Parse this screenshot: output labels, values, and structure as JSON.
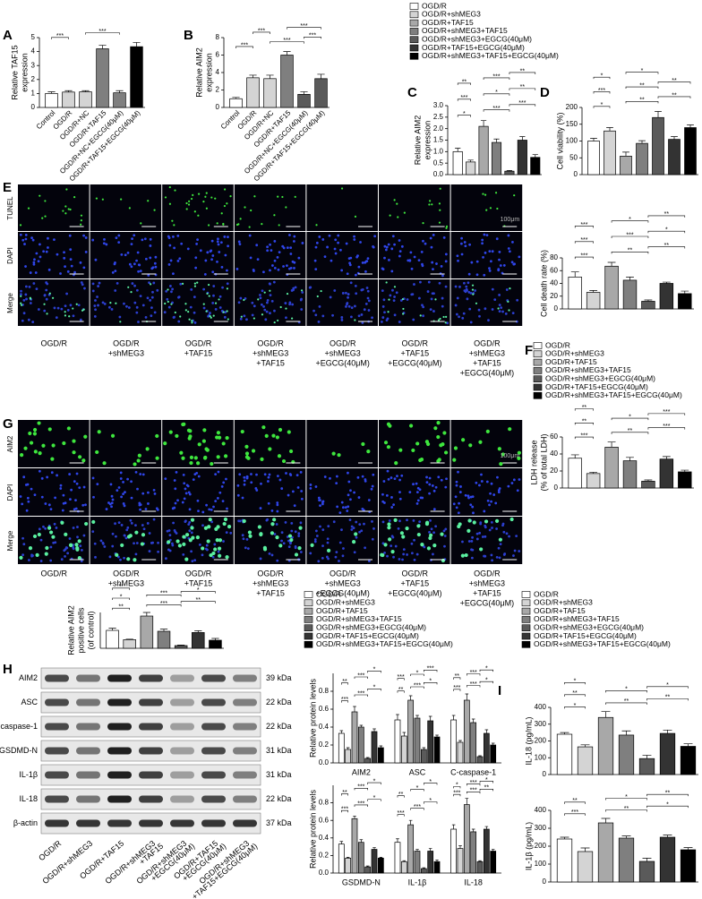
{
  "panels": [
    "A",
    "B",
    "C",
    "D",
    "E",
    "F",
    "G",
    "H",
    "I"
  ],
  "groups": [
    {
      "name": "OGD/R",
      "color": "#ffffff"
    },
    {
      "name": "OGD/R+shMEG3",
      "color": "#d4d4d4"
    },
    {
      "name": "OGD/R+TAF15",
      "color": "#a8a8a8"
    },
    {
      "name": "OGD/R+shMEG3+TAF15",
      "color": "#7f7f7f"
    },
    {
      "name": "OGD/R+shMEG3+EGCG(40μM)",
      "color": "#5a5a5a"
    },
    {
      "name": "OGD/R+TAF15+EGCG(40μM)",
      "color": "#333333"
    },
    {
      "name": "OGD/R+shMEG3+TAF15+EGCG(40μM)",
      "color": "#000000"
    }
  ],
  "microscopy": [
    {
      "rows": [
        "TUNEL",
        "DAPI",
        "Merge"
      ],
      "scale_bar": "100μm",
      "columns": [
        [
          "OGD/R"
        ],
        [
          "OGD/R",
          "+shMEG3"
        ],
        [
          "OGD/R",
          "+TAF15"
        ],
        [
          "OGD/R",
          "+shMEG3",
          "+TAF15"
        ],
        [
          "OGD/R",
          "+shMEG3",
          "+EGCG(40μM)"
        ],
        [
          "OGD/R",
          "+TAF15",
          "+EGCG(40μM)"
        ],
        [
          "OGD/R",
          "+shMEG3",
          "+TAF15",
          "+EGCG(40μM)"
        ]
      ]
    },
    {
      "rows": [
        "AIM2",
        "DAPI",
        "Merge"
      ],
      "scale_bar": "100μm",
      "columns": [
        [
          "OGD/R"
        ],
        [
          "OGD/R",
          "+shMEG3"
        ],
        [
          "OGD/R",
          "+TAF15"
        ],
        [
          "OGD/R",
          "+shMEG3",
          "+TAF15"
        ],
        [
          "OGD/R",
          "+shMEG3",
          "+EGCG(40μM)"
        ],
        [
          "OGD/R",
          "+TAF15",
          "+EGCG(40μM)"
        ],
        [
          "OGD/R",
          "+shMEG3",
          "+TAF15",
          "+EGCG(40μM)"
        ]
      ]
    }
  ],
  "western_blot": {
    "rows": [
      {
        "protein": "AIM2",
        "size": "39 kDa"
      },
      {
        "protein": "ASC",
        "size": "22 kDa"
      },
      {
        "protein": "C-caspase-1",
        "size": "22 kDa"
      },
      {
        "protein": "GSDMD-N",
        "size": "31 kDa"
      },
      {
        "protein": "IL-1β",
        "size": "31 kDa"
      },
      {
        "protein": "IL-18",
        "size": "22 kDa"
      },
      {
        "protein": "β-actin",
        "size": "37 kDa"
      }
    ],
    "lanes": [
      [
        "OGD/R"
      ],
      [
        "OGD/R+shMEG3"
      ],
      [
        "OGD/R+TAF15"
      ],
      [
        "OGD/R+shMEG3",
        "+TAF15"
      ],
      [
        "OGD/R+shMEG3",
        "+EGCG(40μM)"
      ],
      [
        "OGD/R+TAF15",
        "+EGCG(40μM)"
      ],
      [
        "OGD/R+shMEG3",
        "+TAF15+EGCG(40μM)"
      ]
    ]
  },
  "chart_data": [
    {
      "type": "bar",
      "ylabel": [
        "Relative TAF15",
        "expression"
      ],
      "categories": [
        "Control",
        "OGD/R",
        "OGD/R+NC",
        "OGD/R+TAF15",
        "OGD/R+NC+EGCG(40μM)",
        "OGD/R+TAF15+EGCG(40μM)"
      ],
      "values": [
        1,
        1.1,
        1.12,
        4.2,
        1.05,
        4.35
      ],
      "errors": [
        0.12,
        0.1,
        0.08,
        0.25,
        0.15,
        0.3
      ],
      "colors": [
        "#ffffff",
        "#d4d4d4",
        "#d4d4d4",
        "#7f7f7f",
        "#7f7f7f",
        "#000000"
      ],
      "ylim": [
        0,
        5
      ],
      "yticks": [
        0,
        1,
        2,
        3,
        4,
        5
      ],
      "significance": [
        "***",
        "***"
      ]
    },
    {
      "type": "bar",
      "ylabel": [
        "Relative AIM2",
        "expression"
      ],
      "categories": [
        "Control",
        "OGD/R",
        "OGD/R+NC",
        "OGD/R+TAF15",
        "OGD/R+NC+EGCG(40μM)",
        "OGD/R+TAF15+EGCG(40μM)"
      ],
      "values": [
        1,
        3.4,
        3.3,
        6,
        1.5,
        3.3
      ],
      "errors": [
        0.15,
        0.3,
        0.4,
        0.4,
        0.3,
        0.5
      ],
      "colors": [
        "#ffffff",
        "#d4d4d4",
        "#d4d4d4",
        "#7f7f7f",
        "#5a5a5a",
        "#5a5a5a"
      ],
      "ylim": [
        0,
        8
      ],
      "yticks": [
        0,
        2,
        4,
        6,
        8
      ],
      "significance": [
        "***",
        "***",
        "***",
        "***",
        "***"
      ]
    },
    {
      "type": "bar",
      "ylabel": [
        "Relative AIM2",
        "expression"
      ],
      "values": [
        1,
        0.55,
        2.1,
        1.4,
        0.15,
        1.5,
        0.75
      ],
      "errors": [
        0.15,
        0.08,
        0.25,
        0.15,
        0.03,
        0.15,
        0.12
      ],
      "ylim": [
        0,
        3
      ],
      "yticks": [
        {
          "value": 0,
          "label": "0.0"
        },
        0.5,
        {
          "value": 1,
          "label": "1.0"
        },
        1.5,
        {
          "value": 2,
          "label": "2.0"
        },
        2.5,
        {
          "value": 3,
          "label": "3.0"
        }
      ],
      "significance": [
        "*",
        "***",
        "***",
        "***",
        "*",
        "**",
        "**",
        "***",
        "**"
      ]
    },
    {
      "type": "bar",
      "ylabel": [
        "Cell viability (%)"
      ],
      "values": [
        100,
        130,
        55,
        93,
        170,
        105,
        140
      ],
      "errors": [
        8,
        10,
        12,
        8,
        18,
        8,
        8
      ],
      "ylim": [
        0,
        200
      ],
      "yticks": [
        0,
        50,
        100,
        150,
        200
      ],
      "significance": [
        "*",
        "**",
        "**",
        "***",
        "**",
        "**",
        "*",
        "*"
      ]
    },
    {
      "type": "bar",
      "ylabel": [
        "Cell death rate (%)"
      ],
      "values": [
        50,
        26,
        67,
        45,
        12,
        40,
        24
      ],
      "errors": [
        8,
        3,
        6,
        5,
        2,
        2,
        4
      ],
      "ylim": [
        0,
        80
      ],
      "yticks": [
        0,
        20,
        40,
        60,
        80
      ],
      "significance": [
        "***",
        "**",
        "**",
        "***",
        "***",
        "*",
        "***",
        "*",
        "**"
      ]
    },
    {
      "type": "bar",
      "ylabel": [
        "LDH release",
        "(% of total LDH)"
      ],
      "values": [
        35,
        17,
        48,
        32,
        8,
        34,
        19
      ],
      "errors": [
        4,
        1.5,
        6,
        4,
        1.5,
        3,
        2
      ],
      "ylim": [
        0,
        60
      ],
      "yticks": [
        0,
        20,
        40,
        60
      ],
      "significance": [
        "***",
        "**",
        "***",
        "**",
        "*",
        "***",
        "**"
      ]
    },
    {
      "type": "bar",
      "ylabel": [
        "Relative AIM2",
        "positive cells",
        "(of control)"
      ],
      "values": [
        1,
        0.48,
        1.8,
        0.95,
        0.15,
        0.88,
        0.45
      ],
      "errors": [
        0.12,
        0.03,
        0.2,
        0.12,
        0.03,
        0.1,
        0.1
      ],
      "ylim": [
        0,
        2
      ],
      "significance": [
        "**",
        "***",
        "**",
        "*",
        "***",
        "*",
        "**"
      ]
    },
    {
      "type": "grouped_bar",
      "ylabel": [
        "Relative protein levels"
      ],
      "categories": [
        "AIM2",
        "ASC",
        "C-caspase-1"
      ],
      "series": [
        {
          "values": [
            0.33,
            0.48,
            0.48
          ],
          "errors": [
            0.03,
            0.06,
            0.05
          ]
        },
        {
          "values": [
            0.15,
            0.3,
            0.23
          ],
          "errors": [
            0.02,
            0.04,
            0.02
          ]
        },
        {
          "values": [
            0.57,
            0.7,
            0.7
          ],
          "errors": [
            0.06,
            0.05,
            0.07
          ]
        },
        {
          "values": [
            0.4,
            0.5,
            0.45
          ],
          "errors": [
            0.02,
            0.03,
            0.04
          ]
        },
        {
          "values": [
            0.05,
            0.15,
            0.07
          ],
          "errors": [
            0.01,
            0.02,
            0.01
          ]
        },
        {
          "values": [
            0.35,
            0.47,
            0.33
          ],
          "errors": [
            0.03,
            0.05,
            0.04
          ]
        },
        {
          "values": [
            0.17,
            0.29,
            0.2
          ],
          "errors": [
            0.02,
            0.02,
            0.02
          ]
        }
      ],
      "ylim": [
        0,
        1
      ],
      "yticks": [
        {
          "value": 0,
          "label": "0.0"
        },
        0.2,
        0.4,
        0.6,
        0.8
      ],
      "significance": [
        [
          "***",
          "***",
          "*",
          "**",
          "***",
          "*"
        ],
        [
          "**",
          "***",
          "*",
          "***",
          "*",
          "***"
        ],
        [
          "***",
          "***",
          "*",
          "**",
          "***",
          "*"
        ]
      ]
    },
    {
      "type": "grouped_bar",
      "ylabel": [
        "Relative protein levels"
      ],
      "categories": [
        "GSDMD-N",
        "IL-1β",
        "IL-18"
      ],
      "series": [
        {
          "values": [
            0.33,
            0.35,
            0.5
          ],
          "errors": [
            0.03,
            0.04,
            0.05
          ]
        },
        {
          "values": [
            0.17,
            0.13,
            0.28
          ],
          "errors": [
            0.01,
            0.01,
            0.03
          ]
        },
        {
          "values": [
            0.62,
            0.55,
            0.78
          ],
          "errors": [
            0.03,
            0.05,
            0.07
          ]
        },
        {
          "values": [
            0.35,
            0.25,
            0.47
          ],
          "errors": [
            0.03,
            0.02,
            0.03
          ]
        },
        {
          "values": [
            0.07,
            0.05,
            0.13
          ],
          "errors": [
            0.01,
            0.01,
            0.01
          ]
        },
        {
          "values": [
            0.27,
            0.25,
            0.5
          ],
          "errors": [
            0.02,
            0.03,
            0.03
          ]
        },
        {
          "values": [
            0.17,
            0.13,
            0.25
          ],
          "errors": [
            0.01,
            0.02,
            0.02
          ]
        }
      ],
      "ylim": [
        0,
        1
      ],
      "yticks": [
        {
          "value": 0,
          "label": "0.0"
        },
        0.2,
        0.4,
        0.6,
        0.8
      ],
      "significance": [
        [
          "***",
          "***",
          "*",
          "**",
          "***",
          "*"
        ],
        [
          "***",
          "***",
          "*",
          "**",
          "*",
          "*"
        ],
        [
          "***",
          "***",
          "**",
          "*",
          "***",
          "*"
        ]
      ]
    },
    {
      "type": "bar",
      "ylabel": [
        "IL-18 (pg/mL)"
      ],
      "values": [
        240,
        165,
        340,
        235,
        95,
        245,
        168
      ],
      "errors": [
        10,
        12,
        35,
        25,
        20,
        20,
        15
      ],
      "ylim": [
        0,
        400
      ],
      "yticks": [
        0,
        100,
        200,
        300,
        400
      ],
      "significance": [
        "*",
        "**",
        "**",
        "**",
        "*",
        "*",
        "*"
      ]
    },
    {
      "type": "bar",
      "ylabel": [
        "IL-1β (pg/mL)"
      ],
      "values": [
        240,
        170,
        330,
        245,
        115,
        250,
        180
      ],
      "errors": [
        10,
        20,
        25,
        12,
        18,
        12,
        12
      ],
      "ylim": [
        0,
        400
      ],
      "yticks": [
        0,
        100,
        200,
        300,
        400
      ],
      "significance": [
        "***",
        "**",
        "*",
        "**",
        "*",
        "**"
      ]
    }
  ]
}
